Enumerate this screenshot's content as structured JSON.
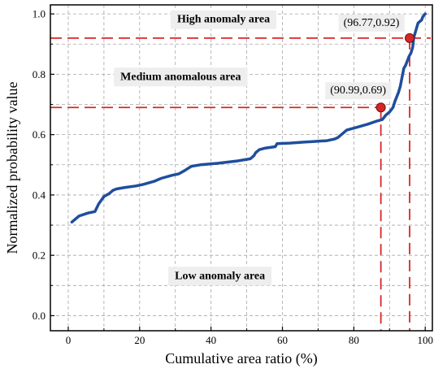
{
  "chart_data": {
    "type": "line",
    "xlabel": "Cumulative area ratio (%)",
    "ylabel": "Normalized probability value",
    "xlim": [
      -5,
      102
    ],
    "ylim": [
      -0.05,
      1.03
    ],
    "x_ticks": [
      0,
      20,
      40,
      60,
      80,
      100
    ],
    "y_ticks": [
      0.0,
      0.2,
      0.4,
      0.6,
      0.8,
      1.0
    ],
    "x_tick_labels": [
      "0",
      "20",
      "40",
      "60",
      "80",
      "100"
    ],
    "y_tick_labels": [
      "0.0",
      "0.2",
      "0.4",
      "0.6",
      "0.8",
      "1.0"
    ],
    "grid": true,
    "series": [
      {
        "color": "#1f4e9c",
        "x": [
          1.0,
          3.0,
          5.5,
          7.5,
          8.5,
          10.0,
          11.5,
          12.5,
          13.5,
          16.0,
          19.0,
          21.0,
          24.0,
          26.0,
          29.0,
          31.0,
          32.5,
          34.5,
          37.0,
          42.0,
          47.0,
          51.0,
          52.0,
          52.5,
          53.5,
          55.0,
          58.0,
          58.5,
          62.0,
          66.0,
          70.0,
          72.5,
          74.5,
          75.5,
          76.5,
          78.0,
          81.0,
          84.0,
          86.5,
          88.0,
          89.0,
          90.0,
          90.99,
          91.5,
          92.5,
          93.0,
          93.5,
          94.0,
          94.5,
          95.0,
          95.5,
          96.0,
          96.5,
          96.77,
          97.5,
          98.0,
          98.5,
          99.0,
          99.3,
          99.6,
          100.0
        ],
        "y": [
          0.31,
          0.33,
          0.34,
          0.345,
          0.37,
          0.395,
          0.405,
          0.415,
          0.42,
          0.425,
          0.43,
          0.435,
          0.445,
          0.455,
          0.465,
          0.47,
          0.48,
          0.495,
          0.5,
          0.505,
          0.512,
          0.52,
          0.53,
          0.54,
          0.55,
          0.555,
          0.56,
          0.57,
          0.572,
          0.575,
          0.578,
          0.58,
          0.585,
          0.59,
          0.6,
          0.615,
          0.625,
          0.635,
          0.645,
          0.65,
          0.665,
          0.675,
          0.69,
          0.71,
          0.74,
          0.76,
          0.79,
          0.82,
          0.83,
          0.845,
          0.86,
          0.87,
          0.89,
          0.92,
          0.95,
          0.97,
          0.975,
          0.98,
          0.99,
          0.995,
          1.0
        ]
      }
    ],
    "points": [
      {
        "x": 90.99,
        "y": 0.69,
        "label": "(90.99,0.69)"
      },
      {
        "x": 96.77,
        "y": 0.92,
        "label": "(96.77,0.92)"
      }
    ],
    "annotations": [
      {
        "text": "High anomaly area",
        "x": 43.5,
        "y": 0.985
      },
      {
        "text": "Medium anomalous area",
        "x": 31.5,
        "y": 0.795
      },
      {
        "text": "Low anomaly area",
        "x": 42.5,
        "y": 0.135
      }
    ]
  }
}
